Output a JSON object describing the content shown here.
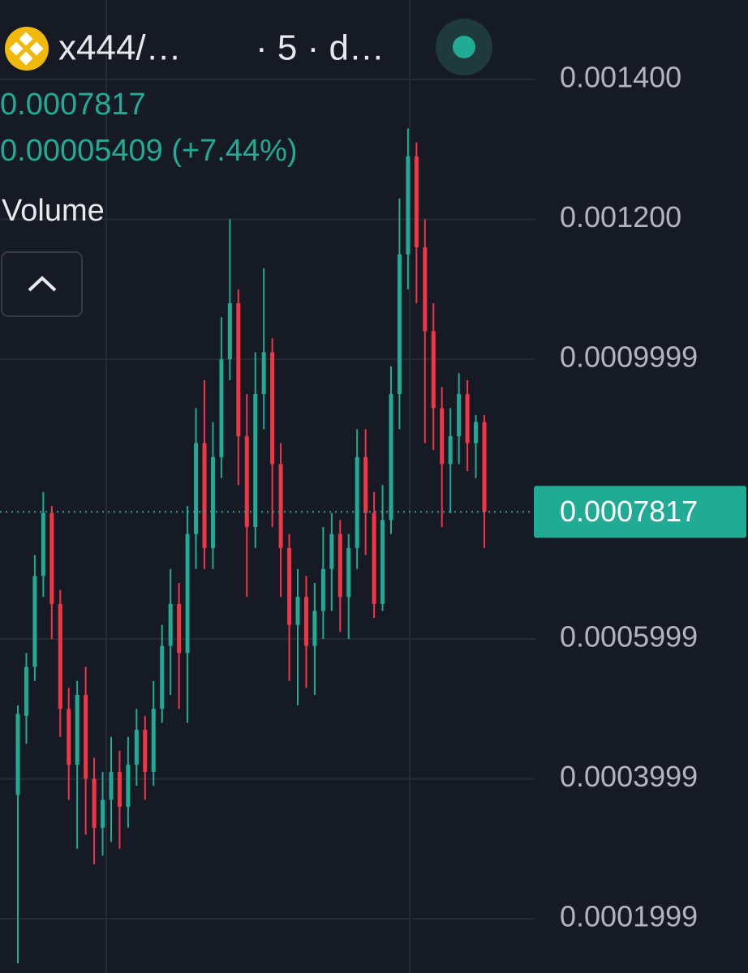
{
  "legend": {
    "symbol": "x444/…",
    "interval": "· 5 · d…",
    "price": "0.0007817",
    "change": "0.00005409 (+7.44%)",
    "indicator": "Volume"
  },
  "chart_data": {
    "type": "candlestick",
    "up_color": "#22ab94",
    "down_color": "#f23645",
    "open": [
      0.000377,
      0.00049,
      0.00056,
      0.00069,
      0.00078,
      0.00065,
      0.0005,
      0.00042,
      0.00052,
      0.0004,
      0.00033,
      0.00037,
      0.00041,
      0.00036,
      0.00042,
      0.00047,
      0.00041,
      0.0005,
      0.00059,
      0.00065,
      0.00058,
      0.00075,
      0.00088,
      0.00073,
      0.00086,
      0.001,
      0.00108,
      0.00089,
      0.00076,
      0.00095,
      0.00101,
      0.00085,
      0.00073,
      0.00062,
      0.00066,
      0.00059,
      0.00064,
      0.0007,
      0.00075,
      0.00066,
      0.00073,
      0.00086,
      0.00078,
      0.00065,
      0.00077,
      0.00095,
      0.00115,
      0.00129,
      0.00116,
      0.00104,
      0.00093,
      0.00085,
      0.00089,
      0.00095,
      0.00088,
      0.00091
    ],
    "high": [
      0.000505,
      0.00058,
      0.00072,
      0.00081,
      0.00079,
      0.00067,
      0.00053,
      0.00054,
      0.00056,
      0.00043,
      0.00041,
      0.00046,
      0.00044,
      0.00046,
      0.0005,
      0.00049,
      0.00054,
      0.00062,
      0.0007,
      0.00068,
      0.00079,
      0.00093,
      0.00097,
      0.00091,
      0.00106,
      0.0012,
      0.0011,
      0.00095,
      0.00101,
      0.00113,
      0.00103,
      0.00088,
      0.00075,
      0.0007,
      0.00069,
      0.00068,
      0.00076,
      0.00078,
      0.00077,
      0.00075,
      0.0009,
      0.0009,
      0.00081,
      0.00082,
      0.00099,
      0.00123,
      0.00133,
      0.00131,
      0.0012,
      0.00108,
      0.00096,
      0.00093,
      0.00098,
      0.00097,
      0.00092,
      0.00092
    ],
    "low": [
      0.000136,
      0.00045,
      0.00054,
      0.00066,
      0.0006,
      0.00046,
      0.00037,
      0.0003,
      0.00032,
      0.000278,
      0.00029,
      0.00031,
      0.0003,
      0.00033,
      0.00039,
      0.00037,
      0.00039,
      0.00048,
      0.00052,
      0.0005,
      0.00048,
      0.0007,
      0.0007,
      0.0007,
      0.00083,
      0.00097,
      0.00082,
      0.00066,
      0.00073,
      0.0009,
      0.00076,
      0.00066,
      0.00054,
      0.000505,
      0.00053,
      0.00052,
      0.0006,
      0.00064,
      0.00061,
      0.0006,
      0.0007,
      0.00072,
      0.00063,
      0.00064,
      0.00075,
      0.0009,
      0.0011,
      0.00108,
      0.00088,
      0.00087,
      0.00076,
      0.00078,
      0.00085,
      0.00084,
      0.00083,
      0.00073
    ],
    "close": [
      0.000493,
      0.00056,
      0.00069,
      0.00078,
      0.00065,
      0.0005,
      0.00042,
      0.00052,
      0.0004,
      0.00033,
      0.00037,
      0.00041,
      0.00036,
      0.00042,
      0.00047,
      0.00041,
      0.0005,
      0.00059,
      0.00065,
      0.00058,
      0.00075,
      0.00088,
      0.00073,
      0.00086,
      0.001,
      0.00108,
      0.00089,
      0.00076,
      0.00095,
      0.00101,
      0.00085,
      0.00073,
      0.00062,
      0.00066,
      0.00059,
      0.00064,
      0.0007,
      0.00075,
      0.00066,
      0.00073,
      0.00086,
      0.00078,
      0.00065,
      0.00077,
      0.00095,
      0.00115,
      0.00129,
      0.00116,
      0.00104,
      0.00093,
      0.00085,
      0.00089,
      0.00095,
      0.00088,
      0.00091,
      0.0007817
    ],
    "ylim": [
      0.0001223,
      0.0015136
    ],
    "yticks": [
      {
        "value": 0.0014,
        "label": "0.001400"
      },
      {
        "value": 0.0012,
        "label": "0.001200"
      },
      0.0009999,
      0.0005999,
      0.0003999,
      0.0001999
    ],
    "last_price": 0.0007817,
    "grid": true
  }
}
